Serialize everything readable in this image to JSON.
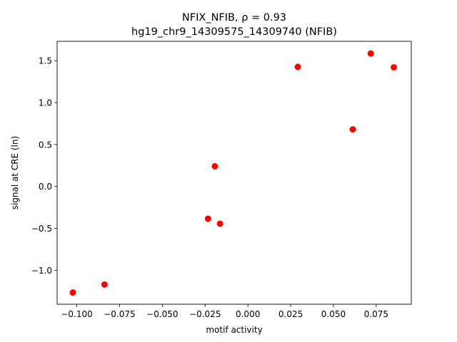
{
  "chart_data": {
    "type": "scatter",
    "title_line1": "NFIX_NFIB, ρ = 0.93",
    "title_line2": "hg19_chr9_14309575_14309740 (NFIB)",
    "xlabel": "motif activity",
    "ylabel": "signal at CRE (ln)",
    "xlim": [
      -0.1115,
      0.0955
    ],
    "ylim": [
      -1.405,
      1.73
    ],
    "x_ticks": [
      {
        "value": -0.1,
        "label": "−0.100"
      },
      {
        "value": -0.075,
        "label": "−0.075"
      },
      {
        "value": -0.05,
        "label": "−0.050"
      },
      {
        "value": -0.025,
        "label": "−0.025"
      },
      {
        "value": 0.0,
        "label": "0.000"
      },
      {
        "value": 0.025,
        "label": "0.025"
      },
      {
        "value": 0.05,
        "label": "0.050"
      },
      {
        "value": 0.075,
        "label": "0.075"
      }
    ],
    "y_ticks": [
      {
        "value": -1.0,
        "label": "−1.0"
      },
      {
        "value": -0.5,
        "label": "−0.5"
      },
      {
        "value": 0.0,
        "label": "0.0"
      },
      {
        "value": 0.5,
        "label": "0.5"
      },
      {
        "value": 1.0,
        "label": "1.0"
      },
      {
        "value": 1.5,
        "label": "1.5"
      }
    ],
    "grid": false,
    "marker_color": "#ff0000",
    "points": [
      {
        "x": -0.1023,
        "y": -1.265
      },
      {
        "x": -0.0838,
        "y": -1.17
      },
      {
        "x": -0.0233,
        "y": -0.385
      },
      {
        "x": -0.0163,
        "y": -0.445
      },
      {
        "x": -0.0193,
        "y": 0.24
      },
      {
        "x": 0.0292,
        "y": 1.425
      },
      {
        "x": 0.0613,
        "y": 0.68
      },
      {
        "x": 0.0718,
        "y": 1.585
      },
      {
        "x": 0.0853,
        "y": 1.42
      }
    ]
  }
}
